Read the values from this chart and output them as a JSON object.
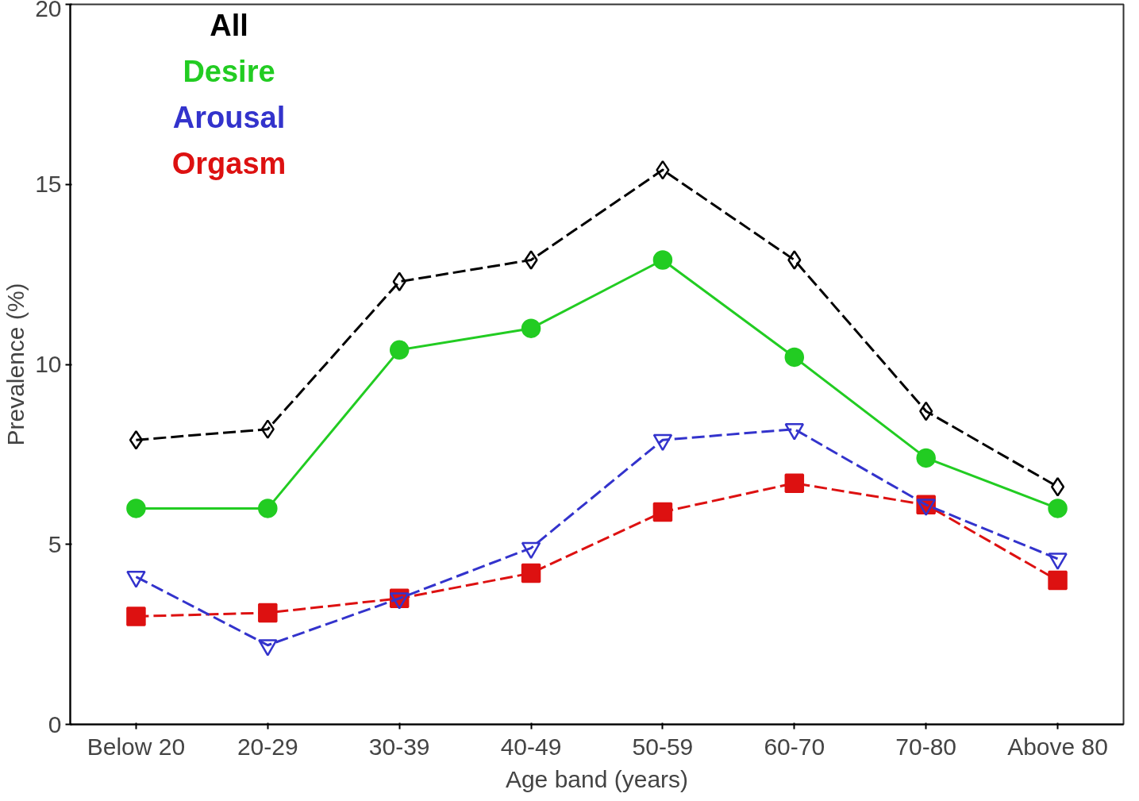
{
  "chart_data": {
    "type": "line",
    "xlabel": "Age band (years)",
    "ylabel": "Prevalence (%)",
    "categories": [
      "Below 20",
      "20-29",
      "30-39",
      "40-49",
      "50-59",
      "60-70",
      "70-80",
      "Above 80"
    ],
    "ylim": [
      0,
      20
    ],
    "yticks": [
      0,
      5,
      10,
      15,
      20
    ],
    "grid": false,
    "legend": "top left",
    "series": [
      {
        "name": "All",
        "color": "#000000",
        "marker": "diamond",
        "line_style": "dashed",
        "values": [
          7.9,
          8.2,
          12.3,
          12.9,
          15.4,
          12.9,
          8.7,
          6.6
        ]
      },
      {
        "name": "Desire",
        "color": "#22cc22",
        "marker": "circle",
        "line_style": "solid",
        "values": [
          6.0,
          6.0,
          10.4,
          11.0,
          12.9,
          10.2,
          7.4,
          6.0
        ]
      },
      {
        "name": "Arousal",
        "color": "#3333cc",
        "marker": "triangle",
        "line_style": "dashed",
        "values": [
          4.1,
          2.2,
          3.5,
          4.9,
          7.9,
          8.2,
          6.1,
          4.6
        ]
      },
      {
        "name": "Orgasm",
        "color": "#dd1111",
        "marker": "square",
        "line_style": "dashed",
        "values": [
          3.0,
          3.1,
          3.5,
          4.2,
          5.9,
          6.7,
          6.1,
          4.0
        ]
      }
    ]
  }
}
